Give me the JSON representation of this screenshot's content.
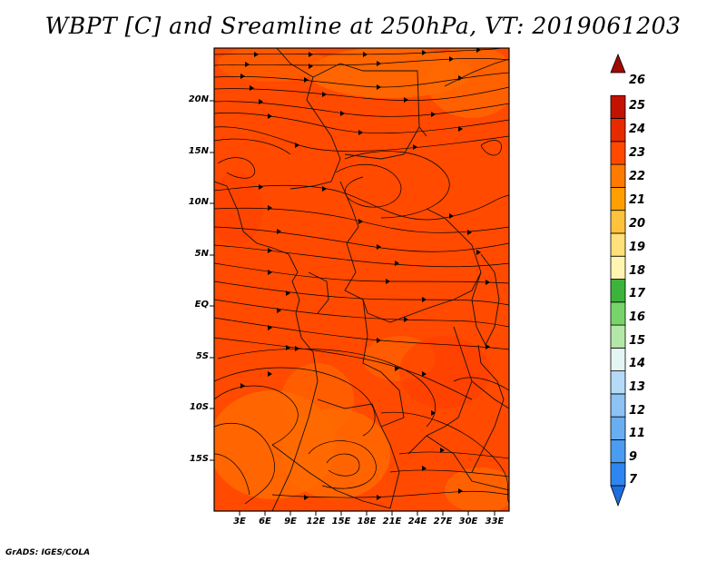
{
  "title": "WBPT [C] and Sreamline at 250hPa, VT: 2019061203",
  "credit": "GrADS: IGES/COLA",
  "map": {
    "lat_labels": [
      "20N",
      "15N",
      "10N",
      "5N",
      "EQ",
      "5S",
      "10S",
      "15S"
    ],
    "lat_values": [
      20,
      15,
      10,
      5,
      0,
      -5,
      -10,
      -15
    ],
    "lon_labels": [
      "3E",
      "6E",
      "9E",
      "12E",
      "15E",
      "18E",
      "21E",
      "24E",
      "27E",
      "30E",
      "33E"
    ],
    "lon_values": [
      3,
      6,
      9,
      12,
      15,
      18,
      21,
      24,
      27,
      30,
      33
    ],
    "lon_range": [
      0,
      35
    ],
    "lat_range": [
      -20,
      25
    ]
  },
  "colorbar": {
    "labels": [
      "7",
      "9",
      "11",
      "12",
      "13",
      "14",
      "15",
      "16",
      "17",
      "18",
      "19",
      "20",
      "21",
      "22",
      "23",
      "24",
      "25",
      "26"
    ],
    "colors": [
      "#1e6ee0",
      "#2e86f0",
      "#4a9cf0",
      "#6aaef2",
      "#8cc2f4",
      "#b4daf8",
      "#e4f6f4",
      "#b4e8a8",
      "#78d46a",
      "#3cb43c",
      "#fff5b0",
      "#ffe07a",
      "#ffc23c",
      "#ffa000",
      "#ff7a00",
      "#ff4a00",
      "#e82a00",
      "#c41200",
      "#a00a00"
    ]
  }
}
